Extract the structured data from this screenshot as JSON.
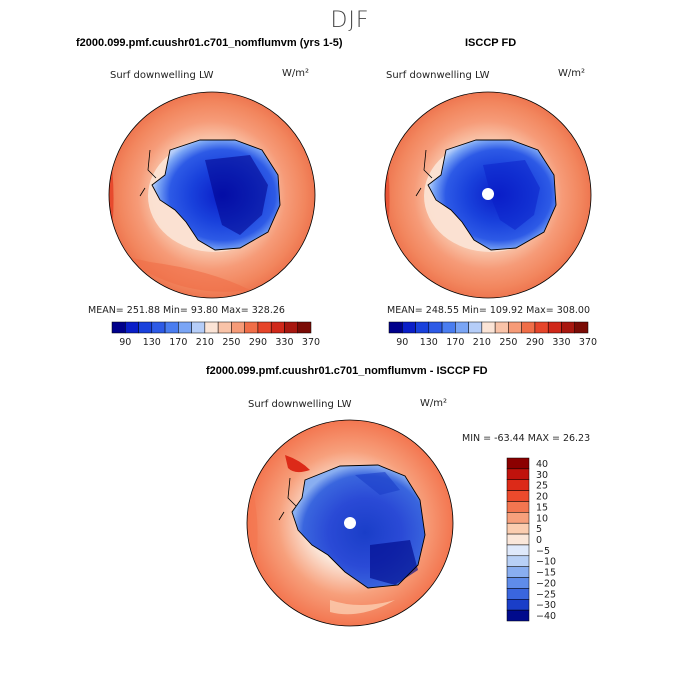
{
  "figure": {
    "title": "DJF",
    "panel1": {
      "title": "f2000.099.pmf.cuushr01.c701_nomflumvm (yrs 1-5)",
      "variable": "Surf downwelling LW",
      "units": "W/m²",
      "stats": "MEAN= 251.88   Min=  93.80   Max= 328.26"
    },
    "panel2": {
      "title": "ISCCP FD",
      "variable": "Surf downwelling LW",
      "units": "W/m²",
      "stats": "MEAN= 248.55   Min= 109.92   Max= 308.00"
    },
    "panel3": {
      "title": "f2000.099.pmf.cuushr01.c701_nomflumvm - ISCCP FD",
      "variable": "Surf downwelling LW",
      "units": "W/m²",
      "stats": "MIN = -63.44  MAX =  26.23"
    }
  },
  "chart_data": [
    {
      "type": "heatmap",
      "projection": "polar-stereographic-south",
      "title": "f2000.099.pmf.cuushr01.c701_nomflumvm (yrs 1-5)",
      "variable": "Surf downwelling LW",
      "units": "W/m2",
      "mean": 251.88,
      "min": 93.8,
      "max": 328.26,
      "colorbar_levels": [
        90,
        110,
        130,
        150,
        170,
        190,
        210,
        230,
        250,
        270,
        290,
        310,
        330,
        350,
        370
      ],
      "colorbar_tick_labels": [
        "90",
        "130",
        "170",
        "210",
        "250",
        "290",
        "330",
        "370"
      ]
    },
    {
      "type": "heatmap",
      "projection": "polar-stereographic-south",
      "title": "ISCCP FD",
      "variable": "Surf downwelling LW",
      "units": "W/m2",
      "mean": 248.55,
      "min": 109.92,
      "max": 308.0,
      "colorbar_levels": [
        90,
        110,
        130,
        150,
        170,
        190,
        210,
        230,
        250,
        270,
        290,
        310,
        330,
        350,
        370
      ],
      "colorbar_tick_labels": [
        "90",
        "130",
        "170",
        "210",
        "250",
        "290",
        "330",
        "370"
      ]
    },
    {
      "type": "heatmap",
      "projection": "polar-stereographic-south",
      "title": "f2000.099.pmf.cuushr01.c701_nomflumvm - ISCCP FD",
      "variable": "Surf downwelling LW",
      "units": "W/m2",
      "min": -63.44,
      "max": 26.23,
      "colorbar_labels": [
        "40",
        "30",
        "25",
        "20",
        "15",
        "10",
        "5",
        "0",
        "-5",
        "-10",
        "-15",
        "-20",
        "-25",
        "-30",
        "-40"
      ]
    }
  ],
  "colors": {
    "abs_scale": [
      "#00008b",
      "#0a1ec8",
      "#1941dc",
      "#2d5ae6",
      "#4a7df0",
      "#7aa5f5",
      "#b5cdf8",
      "#fbe4d6",
      "#f9c3a8",
      "#f69b78",
      "#f06e48",
      "#e6452a",
      "#d0281a",
      "#a8170f",
      "#7a0b05"
    ],
    "diff_scale": [
      "#8b0000",
      "#c0120c",
      "#dc2a18",
      "#ec4a2c",
      "#f37650",
      "#f7a07c",
      "#fbcdb0",
      "#fbe7da",
      "#dfe9fb",
      "#b8d0f6",
      "#89aef0",
      "#5f8cea",
      "#3a66de",
      "#1a3ec8",
      "#000a8c"
    ],
    "ocean": "#f2865e",
    "ocean_dark": "#e05a34",
    "ice_light": "#b5cdf8"
  }
}
